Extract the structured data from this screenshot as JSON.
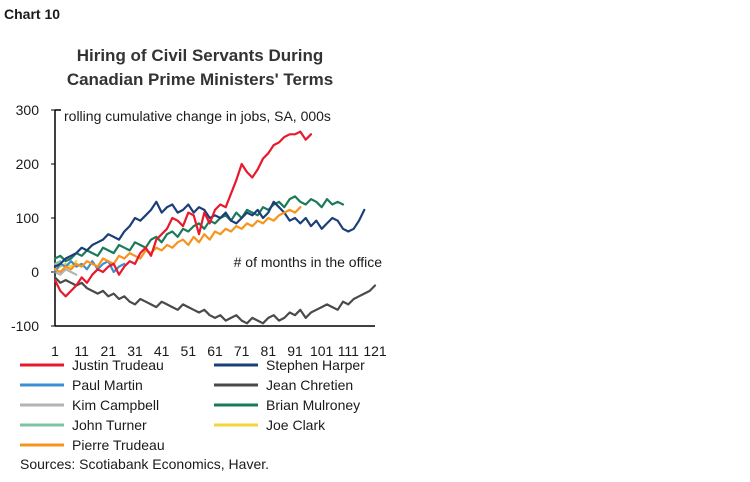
{
  "header": {
    "chart_number": "Chart 10"
  },
  "chart_data": {
    "type": "line",
    "title": [
      "Hiring of Civil Servants During",
      "Canadian Prime Ministers' Terms"
    ],
    "subtitle": "rolling cumulative change in jobs, SA, 000s",
    "xlabel": "# of months in the office",
    "ylabel": "",
    "xlim": [
      1,
      121
    ],
    "ylim": [
      -100,
      300
    ],
    "x_ticks": [
      "1",
      "11",
      "21",
      "31",
      "41",
      "51",
      "61",
      "71",
      "81",
      "91",
      "101",
      "111",
      "121"
    ],
    "y_ticks": [
      "300",
      "200",
      "100",
      "0",
      "-100"
    ],
    "legend_placement": "bottom",
    "series": [
      {
        "name": "Justin Trudeau",
        "color": "#e8192c",
        "x": [
          1,
          3,
          5,
          7,
          9,
          11,
          13,
          15,
          17,
          19,
          21,
          23,
          25,
          27,
          29,
          31,
          33,
          35,
          37,
          39,
          41,
          43,
          45,
          47,
          49,
          51,
          53,
          55,
          57,
          59,
          61,
          63,
          65,
          67,
          69,
          71,
          73,
          75,
          77,
          79,
          81,
          83,
          85,
          87,
          89,
          91,
          93,
          95,
          97
        ],
        "values": [
          -15,
          -35,
          -45,
          -35,
          -25,
          -10,
          -20,
          -5,
          5,
          0,
          10,
          15,
          -5,
          10,
          20,
          15,
          35,
          45,
          30,
          60,
          70,
          80,
          100,
          95,
          85,
          110,
          105,
          70,
          110,
          90,
          115,
          125,
          120,
          145,
          170,
          200,
          185,
          175,
          190,
          210,
          220,
          235,
          240,
          250,
          255,
          255,
          260,
          245,
          255
        ]
      },
      {
        "name": "Stephen Harper",
        "color": "#1c3f7a",
        "x": [
          1,
          3,
          5,
          7,
          9,
          11,
          13,
          15,
          17,
          19,
          21,
          23,
          25,
          27,
          29,
          31,
          33,
          35,
          37,
          39,
          41,
          43,
          45,
          47,
          49,
          51,
          53,
          55,
          57,
          59,
          61,
          63,
          65,
          67,
          69,
          71,
          73,
          75,
          77,
          79,
          81,
          83,
          85,
          87,
          89,
          91,
          93,
          95,
          97,
          99,
          101,
          103,
          105,
          107,
          109,
          111,
          113,
          115,
          117
        ],
        "values": [
          10,
          15,
          25,
          30,
          35,
          45,
          40,
          50,
          55,
          60,
          70,
          65,
          60,
          75,
          85,
          100,
          95,
          105,
          115,
          130,
          110,
          120,
          125,
          110,
          115,
          125,
          110,
          120,
          115,
          100,
          105,
          100,
          110,
          95,
          90,
          100,
          110,
          105,
          115,
          100,
          110,
          130,
          120,
          110,
          95,
          100,
          90,
          100,
          85,
          95,
          80,
          90,
          100,
          95,
          80,
          75,
          80,
          95,
          115
        ]
      },
      {
        "name": "Paul Martin",
        "color": "#3d8fd1",
        "x": [
          1,
          3,
          5,
          7,
          9,
          11,
          13,
          15,
          17,
          19,
          21,
          23,
          25,
          27
        ],
        "values": [
          0,
          15,
          10,
          20,
          10,
          15,
          5,
          20,
          5,
          15,
          20,
          0,
          10,
          15
        ]
      },
      {
        "name": "Jean Chretien",
        "color": "#4a4a4a",
        "x": [
          1,
          3,
          5,
          7,
          9,
          11,
          13,
          15,
          17,
          19,
          21,
          23,
          25,
          27,
          29,
          31,
          33,
          35,
          37,
          39,
          41,
          43,
          45,
          47,
          49,
          51,
          53,
          55,
          57,
          59,
          61,
          63,
          65,
          67,
          69,
          71,
          73,
          75,
          77,
          79,
          81,
          83,
          85,
          87,
          89,
          91,
          93,
          95,
          97,
          99,
          101,
          103,
          105,
          107,
          109,
          111,
          113,
          115,
          117,
          119,
          121
        ],
        "values": [
          -10,
          -20,
          -15,
          -20,
          -25,
          -20,
          -30,
          -35,
          -40,
          -35,
          -45,
          -40,
          -50,
          -45,
          -55,
          -60,
          -50,
          -55,
          -60,
          -65,
          -55,
          -60,
          -65,
          -70,
          -60,
          -65,
          -70,
          -75,
          -70,
          -80,
          -85,
          -80,
          -90,
          -85,
          -80,
          -90,
          -95,
          -85,
          -90,
          -95,
          -85,
          -80,
          -90,
          -85,
          -75,
          -80,
          -70,
          -85,
          -75,
          -70,
          -65,
          -60,
          -65,
          -70,
          -55,
          -60,
          -50,
          -45,
          -40,
          -35,
          -25
        ]
      },
      {
        "name": "Kim Campbell",
        "color": "#b3b3b3",
        "x": [
          1,
          3,
          5,
          7,
          9
        ],
        "values": [
          0,
          -5,
          5,
          0,
          -5
        ]
      },
      {
        "name": "Brian Mulroney",
        "color": "#1a7a5a",
        "x": [
          1,
          3,
          5,
          7,
          9,
          11,
          13,
          15,
          17,
          19,
          21,
          23,
          25,
          27,
          29,
          31,
          33,
          35,
          37,
          39,
          41,
          43,
          45,
          47,
          49,
          51,
          53,
          55,
          57,
          59,
          61,
          63,
          65,
          67,
          69,
          71,
          73,
          75,
          77,
          79,
          81,
          83,
          85,
          87,
          89,
          91,
          93,
          95,
          97,
          99,
          101,
          103,
          105,
          107,
          109
        ],
        "values": [
          25,
          30,
          20,
          25,
          35,
          30,
          40,
          35,
          30,
          45,
          40,
          35,
          50,
          45,
          40,
          55,
          50,
          45,
          60,
          65,
          55,
          70,
          75,
          65,
          80,
          75,
          85,
          90,
          80,
          95,
          90,
          100,
          105,
          95,
          110,
          100,
          115,
          110,
          105,
          120,
          115,
          125,
          130,
          120,
          135,
          140,
          130,
          125,
          135,
          130,
          120,
          135,
          125,
          130,
          125
        ]
      },
      {
        "name": "John Turner",
        "color": "#7fc3a3",
        "x": [
          1,
          3
        ],
        "values": [
          15,
          20
        ]
      },
      {
        "name": "Joe Clark",
        "color": "#f5d33a",
        "x": [
          1,
          3,
          5,
          7,
          9
        ],
        "values": [
          5,
          10,
          15,
          10,
          20
        ]
      },
      {
        "name": "Pierre Trudeau",
        "color": "#f7941d",
        "x": [
          1,
          3,
          5,
          7,
          9,
          11,
          13,
          15,
          17,
          19,
          21,
          23,
          25,
          27,
          29,
          31,
          33,
          35,
          37,
          39,
          41,
          43,
          45,
          47,
          49,
          51,
          53,
          55,
          57,
          59,
          61,
          63,
          65,
          67,
          69,
          71,
          73,
          75,
          77,
          79,
          81,
          83,
          85,
          87,
          89,
          91,
          93
        ],
        "values": [
          5,
          0,
          10,
          5,
          15,
          10,
          20,
          15,
          10,
          25,
          20,
          15,
          30,
          25,
          35,
          30,
          25,
          40,
          35,
          45,
          40,
          50,
          45,
          55,
          60,
          50,
          65,
          55,
          70,
          60,
          75,
          70,
          80,
          75,
          85,
          80,
          90,
          85,
          95,
          90,
          100,
          95,
          105,
          110,
          115,
          110,
          120
        ]
      }
    ]
  },
  "source": "Sources: Scotiabank Economics, Haver."
}
